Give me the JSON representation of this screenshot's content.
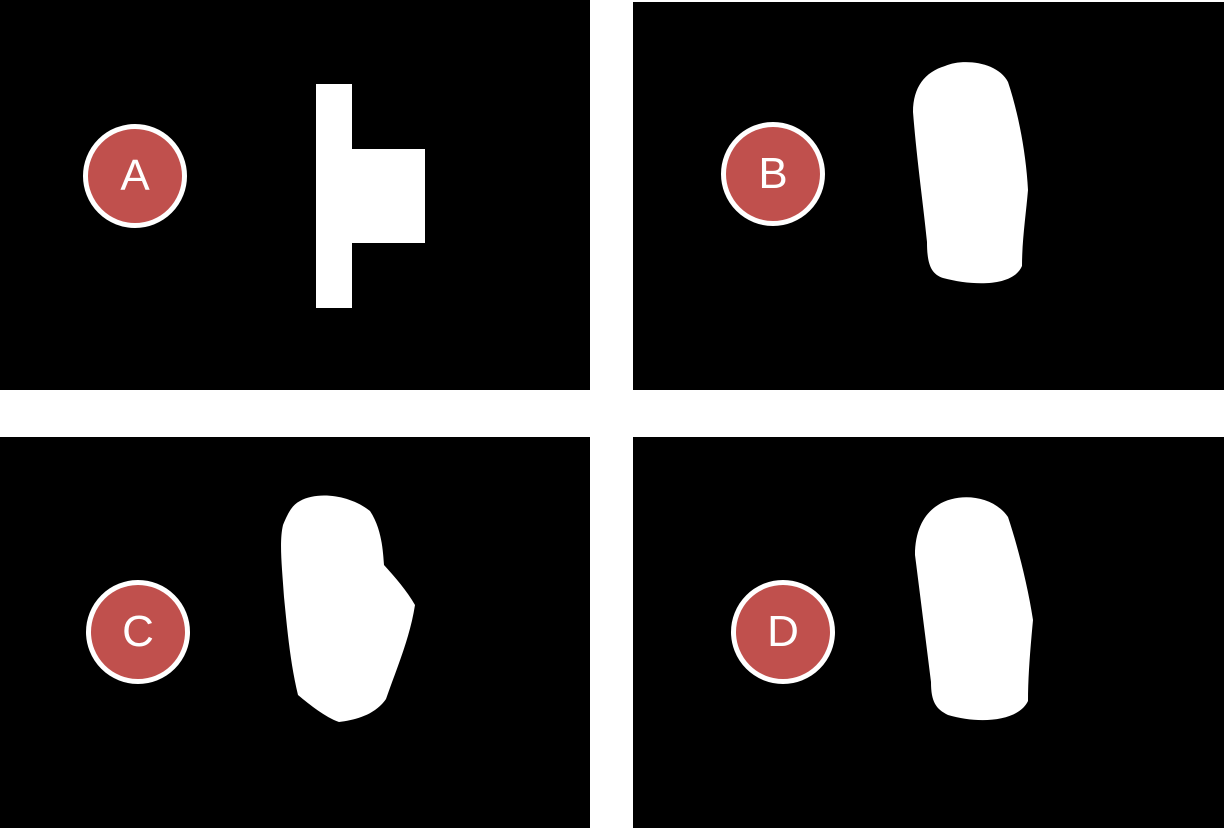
{
  "panels": [
    {
      "label": "A",
      "shape": "T-block"
    },
    {
      "label": "B",
      "shape": "blob"
    },
    {
      "label": "C",
      "shape": "blob-with-notch"
    },
    {
      "label": "D",
      "shape": "blob"
    }
  ],
  "colors": {
    "panel_background": "#000000",
    "shape_fill": "#ffffff",
    "badge_fill": "#c0504d",
    "badge_border": "#ffffff",
    "badge_text": "#ffffff"
  }
}
